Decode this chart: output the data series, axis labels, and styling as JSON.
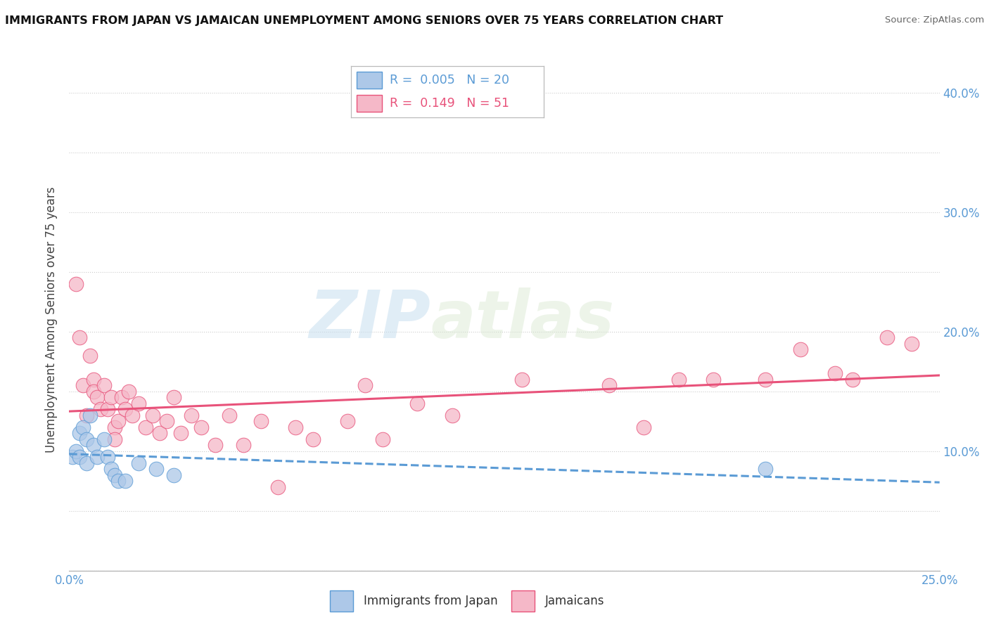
{
  "title": "IMMIGRANTS FROM JAPAN VS JAMAICAN UNEMPLOYMENT AMONG SENIORS OVER 75 YEARS CORRELATION CHART",
  "source": "Source: ZipAtlas.com",
  "ylabel": "Unemployment Among Seniors over 75 years",
  "xlim": [
    0.0,
    0.25
  ],
  "ylim": [
    0.0,
    0.42
  ],
  "x_ticks": [
    0.0,
    0.025,
    0.05,
    0.075,
    0.1,
    0.125,
    0.15,
    0.175,
    0.2,
    0.225,
    0.25
  ],
  "x_tick_labels": [
    "0.0%",
    "",
    "",
    "",
    "",
    "",
    "",
    "",
    "",
    "",
    "25.0%"
  ],
  "y_ticks": [
    0.0,
    0.05,
    0.1,
    0.15,
    0.2,
    0.25,
    0.3,
    0.35,
    0.4
  ],
  "y_tick_labels": [
    "",
    "",
    "10.0%",
    "",
    "20.0%",
    "",
    "30.0%",
    "",
    "40.0%"
  ],
  "watermark_zip": "ZIP",
  "watermark_atlas": "atlas",
  "legend_r1": "0.005",
  "legend_n1": "20",
  "legend_r2": "0.149",
  "legend_n2": "51",
  "color_japan": "#adc8e8",
  "color_jamaican": "#f5b8c8",
  "color_line_japan": "#5b9bd5",
  "color_line_jamaican": "#e8527a",
  "japan_x": [
    0.001,
    0.002,
    0.003,
    0.003,
    0.004,
    0.005,
    0.005,
    0.006,
    0.007,
    0.008,
    0.01,
    0.011,
    0.012,
    0.013,
    0.014,
    0.016,
    0.02,
    0.025,
    0.03,
    0.2
  ],
  "japan_y": [
    0.095,
    0.1,
    0.115,
    0.095,
    0.12,
    0.11,
    0.09,
    0.13,
    0.105,
    0.095,
    0.11,
    0.095,
    0.085,
    0.08,
    0.075,
    0.075,
    0.09,
    0.085,
    0.08,
    0.085
  ],
  "jamaican_x": [
    0.002,
    0.003,
    0.004,
    0.005,
    0.006,
    0.007,
    0.007,
    0.008,
    0.009,
    0.01,
    0.011,
    0.012,
    0.013,
    0.013,
    0.014,
    0.015,
    0.016,
    0.017,
    0.018,
    0.02,
    0.022,
    0.024,
    0.026,
    0.028,
    0.03,
    0.032,
    0.035,
    0.038,
    0.042,
    0.046,
    0.05,
    0.055,
    0.06,
    0.065,
    0.07,
    0.08,
    0.085,
    0.09,
    0.1,
    0.11,
    0.13,
    0.155,
    0.165,
    0.175,
    0.185,
    0.2,
    0.21,
    0.22,
    0.225,
    0.235,
    0.242
  ],
  "jamaican_y": [
    0.24,
    0.195,
    0.155,
    0.13,
    0.18,
    0.16,
    0.15,
    0.145,
    0.135,
    0.155,
    0.135,
    0.145,
    0.12,
    0.11,
    0.125,
    0.145,
    0.135,
    0.15,
    0.13,
    0.14,
    0.12,
    0.13,
    0.115,
    0.125,
    0.145,
    0.115,
    0.13,
    0.12,
    0.105,
    0.13,
    0.105,
    0.125,
    0.07,
    0.12,
    0.11,
    0.125,
    0.155,
    0.11,
    0.14,
    0.13,
    0.16,
    0.155,
    0.12,
    0.16,
    0.16,
    0.16,
    0.185,
    0.165,
    0.16,
    0.195,
    0.19
  ]
}
